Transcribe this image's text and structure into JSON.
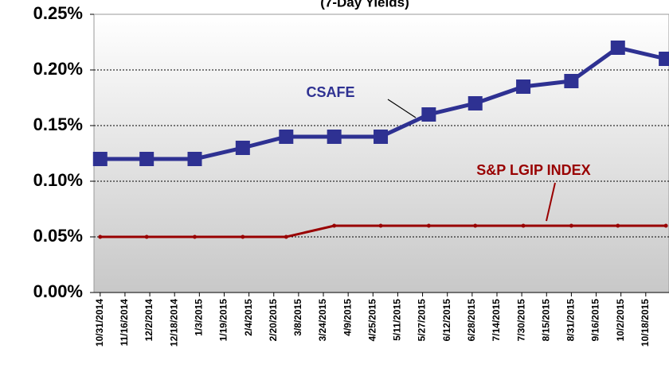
{
  "chart_data": {
    "type": "line",
    "title": "(7-Day Yields)",
    "x": [
      0,
      30,
      61,
      92,
      120,
      151,
      181,
      212,
      242,
      273,
      304,
      334,
      365
    ],
    "xlim": [
      -4,
      367
    ],
    "xticks": [
      {
        "value": 0,
        "label": "10/31/2014"
      },
      {
        "value": 16,
        "label": "11/16/2014"
      },
      {
        "value": 32,
        "label": "12/2/2014"
      },
      {
        "value": 48,
        "label": "12/18/2014"
      },
      {
        "value": 64,
        "label": "1/3/2015"
      },
      {
        "value": 80,
        "label": "1/19/2015"
      },
      {
        "value": 96,
        "label": "2/4/2015"
      },
      {
        "value": 112,
        "label": "2/20/2015"
      },
      {
        "value": 128,
        "label": "3/8/2015"
      },
      {
        "value": 144,
        "label": "3/24/2015"
      },
      {
        "value": 160,
        "label": "4/9/2015"
      },
      {
        "value": 176,
        "label": "4/25/2015"
      },
      {
        "value": 192,
        "label": "5/11/2015"
      },
      {
        "value": 208,
        "label": "5/27/2015"
      },
      {
        "value": 224,
        "label": "6/12/2015"
      },
      {
        "value": 240,
        "label": "6/28/2015"
      },
      {
        "value": 256,
        "label": "7/14/2015"
      },
      {
        "value": 272,
        "label": "7/30/2015"
      },
      {
        "value": 288,
        "label": "8/15/2015"
      },
      {
        "value": 304,
        "label": "8/31/2015"
      },
      {
        "value": 320,
        "label": "9/16/2015"
      },
      {
        "value": 336,
        "label": "10/2/2015"
      },
      {
        "value": 352,
        "label": "10/18/2015"
      }
    ],
    "ylim": [
      0,
      0.25
    ],
    "yticks": [
      {
        "value": 0,
        "label": "0.00%"
      },
      {
        "value": 0.05,
        "label": "0.05%"
      },
      {
        "value": 0.1,
        "label": "0.10%"
      },
      {
        "value": 0.15,
        "label": "0.15%"
      },
      {
        "value": 0.2,
        "label": "0.20%"
      },
      {
        "value": 0.25,
        "label": "0.25%"
      }
    ],
    "grid": true,
    "series": [
      {
        "name": "CSAFE",
        "color": "#2e3192",
        "marker": "square",
        "values": [
          0.12,
          0.12,
          0.12,
          0.13,
          0.14,
          0.14,
          0.14,
          0.16,
          0.17,
          0.185,
          0.19,
          0.22,
          0.21
        ]
      },
      {
        "name": "S&P LGIP INDEX",
        "color": "#990000",
        "marker": "dot",
        "values": [
          0.05,
          0.05,
          0.05,
          0.05,
          0.05,
          0.06,
          0.06,
          0.06,
          0.06,
          0.06,
          0.06,
          0.06,
          0.06
        ]
      }
    ]
  }
}
